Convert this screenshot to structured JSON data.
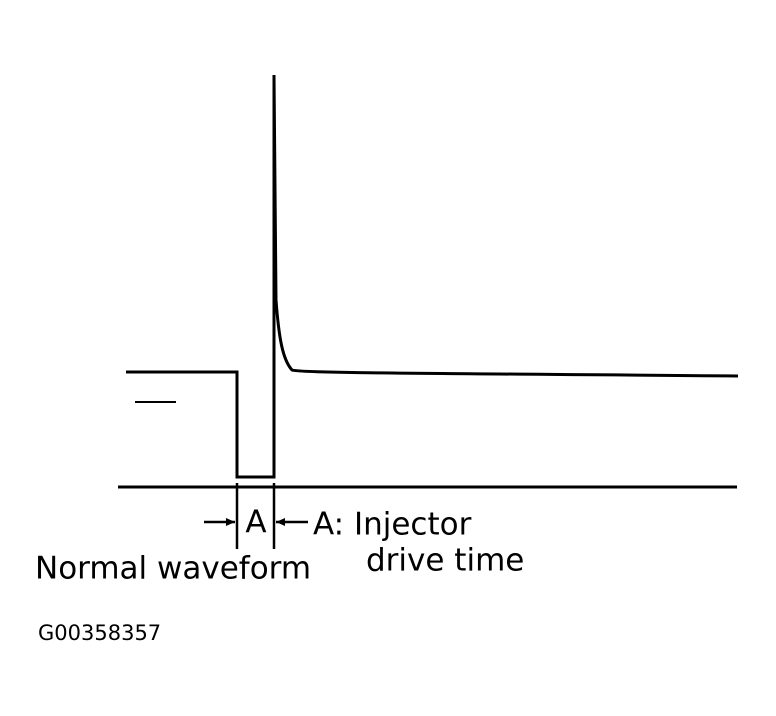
{
  "diagram": {
    "segment_label": "A",
    "legend_lines": [
      "A: Injector",
      "drive time"
    ],
    "caption": "Normal waveform",
    "figure_id": "G00358357"
  }
}
